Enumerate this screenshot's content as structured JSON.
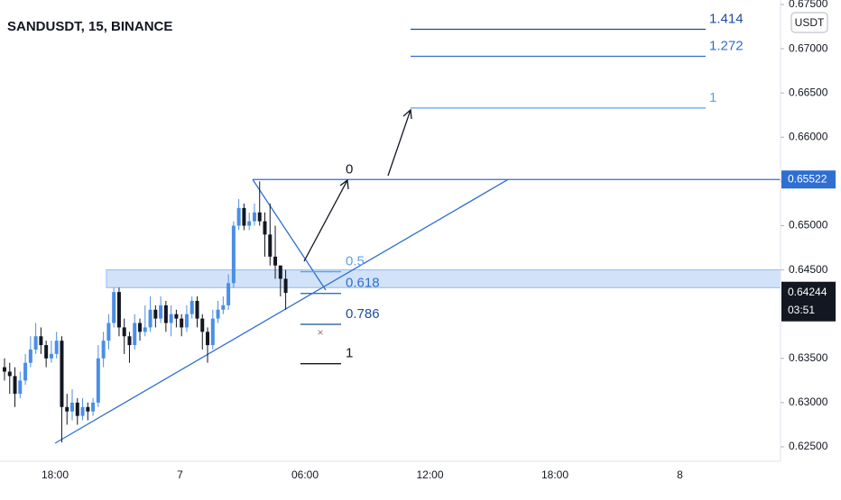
{
  "chart_data": {
    "type": "candlestick",
    "title": "SANDUSDT, 15, BINANCE",
    "currency": "USDT",
    "ohlc": [
      [
        0.634,
        0.635,
        0.6325,
        0.6335
      ],
      [
        0.6335,
        0.6345,
        0.631,
        0.633
      ],
      [
        0.633,
        0.634,
        0.6295,
        0.631
      ],
      [
        0.631,
        0.6335,
        0.6305,
        0.6325
      ],
      [
        0.6325,
        0.6355,
        0.632,
        0.6345
      ],
      [
        0.6345,
        0.6375,
        0.634,
        0.636
      ],
      [
        0.636,
        0.639,
        0.6355,
        0.6375
      ],
      [
        0.6375,
        0.6385,
        0.6355,
        0.6365
      ],
      [
        0.6365,
        0.637,
        0.634,
        0.635
      ],
      [
        0.635,
        0.637,
        0.6345,
        0.6355
      ],
      [
        0.6355,
        0.638,
        0.635,
        0.637
      ],
      [
        0.637,
        0.6375,
        0.6255,
        0.6295
      ],
      [
        0.6295,
        0.631,
        0.6275,
        0.629
      ],
      [
        0.629,
        0.6315,
        0.628,
        0.63
      ],
      [
        0.63,
        0.6305,
        0.6275,
        0.6285
      ],
      [
        0.6285,
        0.6305,
        0.628,
        0.6295
      ],
      [
        0.6295,
        0.63,
        0.628,
        0.629
      ],
      [
        0.629,
        0.6305,
        0.6285,
        0.63
      ],
      [
        0.63,
        0.6365,
        0.6295,
        0.635
      ],
      [
        0.635,
        0.638,
        0.634,
        0.637
      ],
      [
        0.637,
        0.64,
        0.636,
        0.639
      ],
      [
        0.639,
        0.643,
        0.6385,
        0.6425
      ],
      [
        0.6425,
        0.643,
        0.6375,
        0.6385
      ],
      [
        0.6385,
        0.6395,
        0.6355,
        0.6375
      ],
      [
        0.6375,
        0.638,
        0.6345,
        0.6365
      ],
      [
        0.6365,
        0.64,
        0.636,
        0.639
      ],
      [
        0.639,
        0.6395,
        0.637,
        0.638
      ],
      [
        0.638,
        0.641,
        0.6375,
        0.6385
      ],
      [
        0.6385,
        0.642,
        0.638,
        0.6405
      ],
      [
        0.6405,
        0.641,
        0.6385,
        0.6395
      ],
      [
        0.6395,
        0.642,
        0.639,
        0.641
      ],
      [
        0.641,
        0.6415,
        0.638,
        0.639
      ],
      [
        0.639,
        0.641,
        0.6375,
        0.64
      ],
      [
        0.64,
        0.6405,
        0.6385,
        0.6395
      ],
      [
        0.6395,
        0.64,
        0.6375,
        0.6385
      ],
      [
        0.6385,
        0.641,
        0.638,
        0.64
      ],
      [
        0.64,
        0.642,
        0.6395,
        0.6415
      ],
      [
        0.6415,
        0.642,
        0.6385,
        0.6395
      ],
      [
        0.6395,
        0.64,
        0.636,
        0.638
      ],
      [
        0.638,
        0.6385,
        0.6345,
        0.6365
      ],
      [
        0.6365,
        0.6405,
        0.636,
        0.6395
      ],
      [
        0.6395,
        0.6415,
        0.639,
        0.6405
      ],
      [
        0.6405,
        0.642,
        0.64,
        0.641
      ],
      [
        0.641,
        0.6445,
        0.6405,
        0.6435
      ],
      [
        0.6435,
        0.6505,
        0.643,
        0.65
      ],
      [
        0.65,
        0.653,
        0.6495,
        0.652
      ],
      [
        0.652,
        0.6525,
        0.6495,
        0.65
      ],
      [
        0.65,
        0.6515,
        0.6495,
        0.6505
      ],
      [
        0.6505,
        0.6525,
        0.65,
        0.6515
      ],
      [
        0.6515,
        0.655,
        0.65,
        0.6505
      ],
      [
        0.6505,
        0.6515,
        0.6465,
        0.649
      ],
      [
        0.649,
        0.6525,
        0.6455,
        0.6465
      ],
      [
        0.6465,
        0.65,
        0.644,
        0.6455
      ],
      [
        0.6455,
        0.6455,
        0.642,
        0.644
      ],
      [
        0.644,
        0.645,
        0.6405,
        0.6424
      ]
    ],
    "up_color": "#4a8ee6",
    "down_color": "#131722",
    "ylim": [
      0.625,
      0.675
    ],
    "yticks": [
      {
        "value": 0.625,
        "label": "0.62500"
      },
      {
        "value": 0.63,
        "label": "0.63000"
      },
      {
        "value": 0.635,
        "label": "0.63500"
      },
      {
        "value": 0.645,
        "label": "0.64500"
      },
      {
        "value": 0.65,
        "label": "0.65000"
      },
      {
        "value": 0.655,
        "label": "0.65500"
      },
      {
        "value": 0.66,
        "label": "0.66000"
      },
      {
        "value": 0.665,
        "label": "0.66500"
      },
      {
        "value": 0.67,
        "label": "0.67000"
      },
      {
        "value": 0.675,
        "label": "0.67500"
      }
    ],
    "x_labels": [
      "18:00",
      "7",
      "06:00",
      "12:00",
      "18:00",
      "8"
    ],
    "level_price": {
      "value": 0.65522,
      "label": "0.65522"
    },
    "last_price": {
      "value": 0.64244,
      "label": "0.64244",
      "countdown": "03:51"
    },
    "zone": [
      0.643,
      0.645
    ],
    "retracement": {
      "zero_price": 0.6552,
      "one_price": 0.6344,
      "levels": [
        0,
        0.5,
        0.618,
        0.786,
        1
      ],
      "colors": [
        "#131722",
        "#5aa0f0",
        "#2e6fd0",
        "#1c4d9e",
        "#131722"
      ]
    },
    "extension": {
      "zero_price": 0.6418,
      "one_price": 0.6633,
      "levels": [
        1,
        1.272,
        1.414
      ],
      "colors": [
        "#5aa0f0",
        "#2e6fd0",
        "#1c4d9e"
      ]
    }
  }
}
